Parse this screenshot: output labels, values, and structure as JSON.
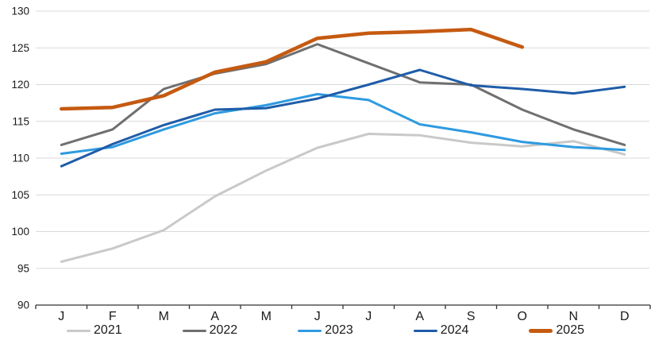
{
  "chart_data": {
    "type": "line",
    "title": "",
    "xlabel": "",
    "ylabel": "",
    "categories": [
      "J",
      "F",
      "M",
      "A",
      "M",
      "J",
      "J",
      "A",
      "S",
      "O",
      "N",
      "D"
    ],
    "y_axis": {
      "min": 90,
      "max": 130,
      "step": 5
    },
    "grid": "horizontal",
    "grid_color": "#d9d9d9",
    "axis_color": "#333333",
    "tick_label_color": "#1a1a1a",
    "legend_position": "bottom",
    "series": [
      {
        "name": "2021",
        "color": "#c9c9c9",
        "line_width": 3,
        "emphasis": false,
        "values": [
          95.9,
          97.7,
          100.2,
          104.8,
          108.3,
          111.4,
          113.3,
          113.1,
          112.1,
          111.6,
          112.3,
          110.5
        ]
      },
      {
        "name": "2022",
        "color": "#6f6f6f",
        "line_width": 3,
        "emphasis": false,
        "values": [
          111.8,
          113.9,
          119.4,
          121.5,
          122.8,
          125.5,
          122.9,
          120.3,
          120.0,
          116.6,
          113.9,
          111.8
        ]
      },
      {
        "name": "2023",
        "color": "#2e9ae0",
        "line_width": 3,
        "emphasis": false,
        "values": [
          110.6,
          111.5,
          113.9,
          116.1,
          117.2,
          118.7,
          117.9,
          114.6,
          113.5,
          112.2,
          111.5,
          111.1
        ]
      },
      {
        "name": "2024",
        "color": "#1f5ca8",
        "line_width": 3,
        "emphasis": false,
        "values": [
          108.9,
          111.9,
          114.5,
          116.6,
          116.8,
          118.1,
          120.0,
          122.0,
          119.9,
          119.4,
          118.8,
          119.7
        ]
      },
      {
        "name": "2025",
        "color": "#c55a11",
        "line_width": 4.5,
        "emphasis": true,
        "values": [
          116.7,
          116.9,
          118.5,
          121.7,
          123.1,
          126.3,
          127.0,
          127.2,
          127.5,
          125.1
        ]
      }
    ]
  }
}
